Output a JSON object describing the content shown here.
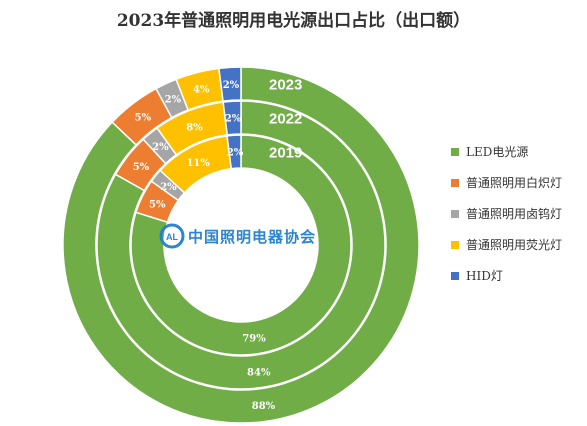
{
  "chart_data": {
    "type": "donut",
    "title": "2023年普通照明用电光源出口占比（出口额）",
    "categories": [
      "LED电光源",
      "普通照明用白炽灯",
      "普通照明用卤钨灯",
      "普通照明用荧光灯",
      "HID灯"
    ],
    "colors": [
      "#70AD47",
      "#ED7D31",
      "#A5A5A5",
      "#FFC000",
      "#4472C4"
    ],
    "series": [
      {
        "name": "2023",
        "values": [
          88,
          5,
          2,
          4,
          2
        ],
        "labels": [
          "88%",
          "5%",
          "2%",
          "4%",
          "2%"
        ]
      },
      {
        "name": "2022",
        "values": [
          84,
          5,
          2,
          8,
          2
        ],
        "labels": [
          "84%",
          "5%",
          "2%",
          "8%",
          "2%"
        ]
      },
      {
        "name": "2019",
        "values": [
          79,
          5,
          2,
          11,
          2
        ],
        "labels": [
          "79%",
          "5%",
          "2%",
          "11%",
          "2%"
        ]
      }
    ],
    "legend_position": "right"
  },
  "watermark": {
    "text": "中国照明电器协会",
    "logo_text": "CALI"
  }
}
